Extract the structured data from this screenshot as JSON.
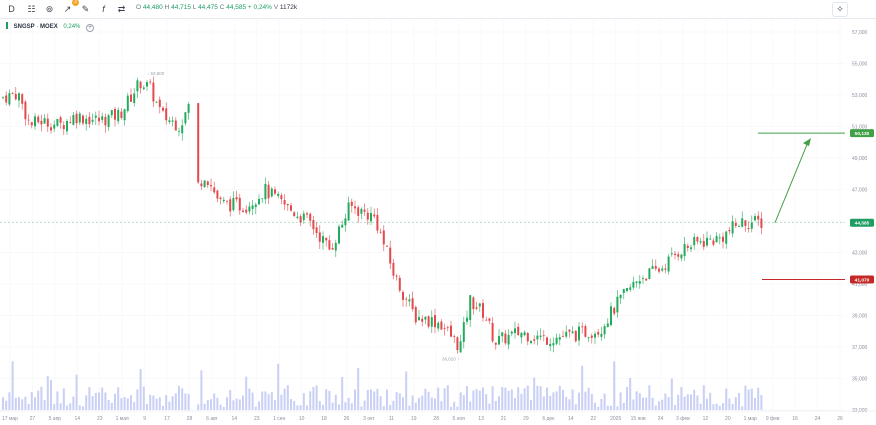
{
  "toolbar": {
    "interval_label": "D",
    "indicator_count": "3",
    "ohlc": {
      "o_label": "O",
      "o_value": "44,480",
      "h_label": "H",
      "h_value": "44,715",
      "l_label": "L",
      "l_value": "44,475",
      "c_label": "C",
      "c_value": "44,585",
      "change": "+ 0,24%",
      "v_label": "V",
      "v_value": "1172k"
    }
  },
  "legend": {
    "symbol": "SNGSP",
    "separator": "·",
    "exchange": "MOEX",
    "change": "0,24%"
  },
  "colors": {
    "up": "#22ab5c",
    "down": "#e5484d",
    "volume": "#c9cff5",
    "target_up": "#43a047",
    "target_down": "#c62828",
    "current": "#1f9d63"
  },
  "chart_data": {
    "type": "candlestick",
    "y_ticks": [
      "57,000",
      "55,000",
      "53,000",
      "51,000",
      "49,000",
      "47,000",
      "45,000",
      "43,000",
      "41,000",
      "39,000",
      "37,000",
      "35,000",
      "33,000"
    ],
    "x_ticks": [
      "17 мар",
      "27",
      "5 апр",
      "14",
      "23",
      "1 мая",
      "9",
      "17",
      "28",
      "6 авг",
      "14",
      "23",
      "1 сен",
      "10",
      "18",
      "26",
      "3 окт",
      "11",
      "19",
      "28",
      "5 ноя",
      "13",
      "21",
      "29",
      "6 дек",
      "14",
      "22",
      "2025",
      "15 янв",
      "24",
      "3 фев",
      "12",
      "20",
      "1 мар",
      "9 фев",
      "16",
      "24",
      "26"
    ],
    "series_close_start": 52.3,
    "high_marker": "53,800",
    "low_marker": "36,820",
    "current_price": "44,585",
    "target_high": "50,130",
    "target_low": "41,070",
    "ylim": [
      33,
      57
    ]
  }
}
